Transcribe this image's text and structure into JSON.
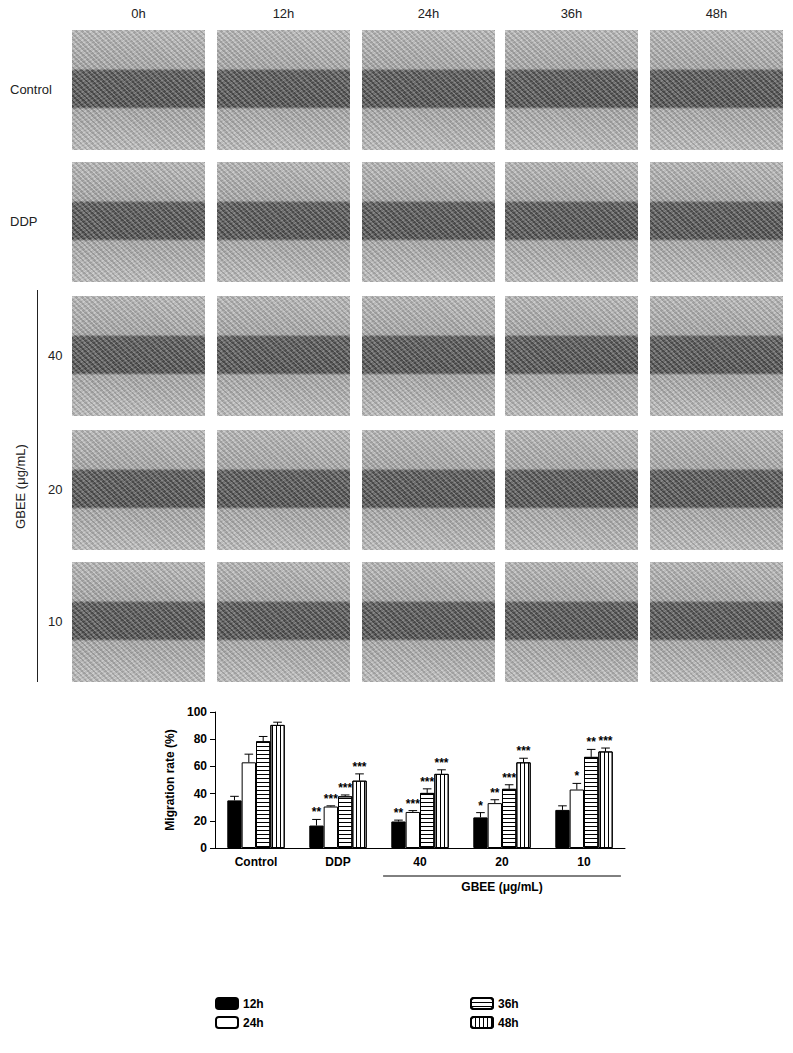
{
  "panels": {
    "columns": [
      "0h",
      "12h",
      "24h",
      "36h",
      "48h"
    ],
    "rows": [
      "Control",
      "DDP",
      "40",
      "20",
      "10"
    ],
    "group_label": "GBEE (μg/mL)",
    "group_rows": [
      "40",
      "20",
      "10"
    ]
  },
  "chart_data": {
    "type": "bar",
    "y_label": "Migration rate (%)",
    "categories": [
      "Control",
      "DDP",
      "40",
      "20",
      "10"
    ],
    "annotations": [
      {
        "text": "GBEE (μg/mL)",
        "categories": [
          "40",
          "20",
          "10"
        ]
      }
    ],
    "series": [
      {
        "name": "12h",
        "color": "#000000",
        "values": [
          35,
          16.5,
          19.5,
          22.5,
          28
        ],
        "errors": [
          3,
          4.5,
          1,
          3.5,
          3
        ],
        "significance": [
          null,
          "**",
          "**",
          "*",
          null
        ]
      },
      {
        "name": "24h",
        "color": "#ffffff",
        "values": [
          63,
          30.5,
          26.5,
          33,
          43
        ],
        "errors": [
          6,
          0.5,
          1,
          2.5,
          4.5
        ],
        "significance": [
          null,
          "***",
          "***",
          "**",
          "*"
        ]
      },
      {
        "name": "36h",
        "color": "#ffffff",
        "values": [
          78.5,
          38,
          40.5,
          43.5,
          67
        ],
        "errors": [
          3.5,
          1,
          3,
          3,
          5.5
        ],
        "significance": [
          null,
          "***",
          "***",
          "***",
          "**"
        ]
      },
      {
        "name": "48h",
        "color": "#ffffff",
        "values": [
          90.5,
          49.5,
          54.5,
          63,
          71
        ],
        "errors": [
          2,
          5,
          3,
          3,
          2.5
        ],
        "significance": [
          null,
          "***",
          "***",
          "***",
          "***"
        ]
      }
    ],
    "ylim": [
      0,
      100
    ],
    "yticks": [
      0,
      20,
      40,
      60,
      80,
      100
    ],
    "grid": false
  }
}
